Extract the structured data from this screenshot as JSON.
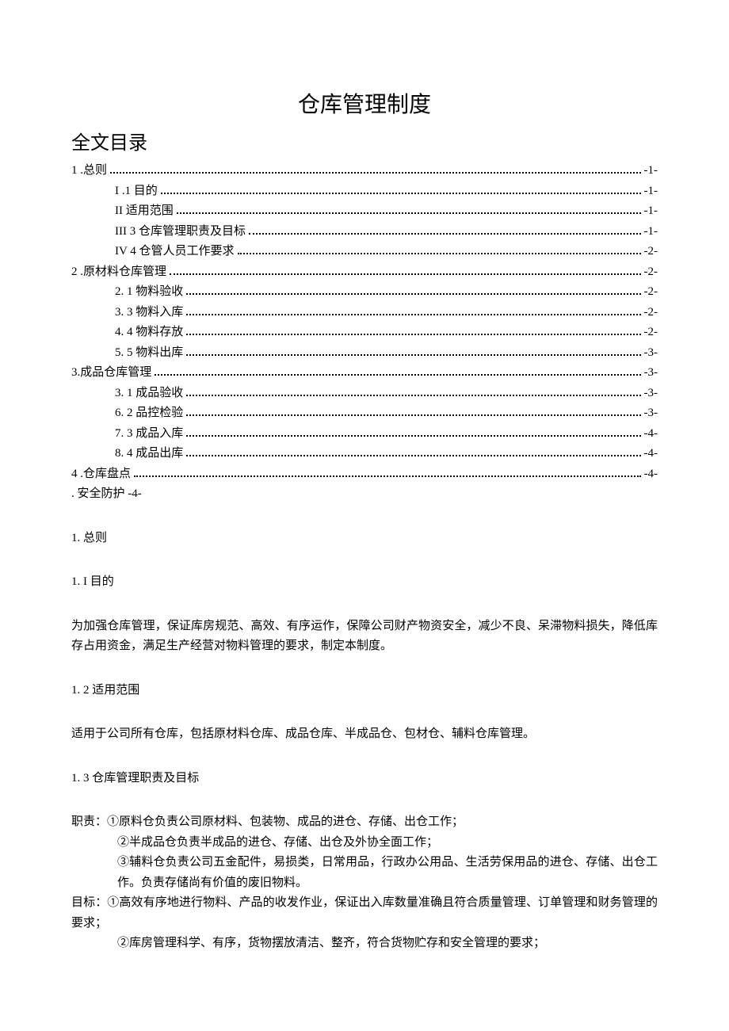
{
  "colors": {
    "text": "#000000",
    "bg": "#ffffff"
  },
  "title": "仓库管理制度",
  "toc_header": "全文目录",
  "toc": [
    {
      "level": 1,
      "label": "1  .总则",
      "page": "-1-"
    },
    {
      "level": 2,
      "label": "I   .1 目的",
      "page": "-1-"
    },
    {
      "level": 2,
      "label": "II     适用范围",
      "page": "-1-"
    },
    {
      "level": 2,
      "label": "III  3 仓库管理职责及目标",
      "page": "-1-"
    },
    {
      "level": 2,
      "label": "IV  4 仓管人员工作要求",
      "page": "-2-"
    },
    {
      "level": 1,
      "label": "2   .原材料仓库管理",
      "page": "-2-"
    },
    {
      "level": 2,
      "label": "2.  1 物料验收",
      "page": "-2-"
    },
    {
      "level": 2,
      "label": "3.  3 物料入库",
      "page": "-2-"
    },
    {
      "level": 2,
      "label": "4.  4 物料存放",
      "page": "-2-"
    },
    {
      "level": 2,
      "label": "5.  5 物料出库",
      "page": "-3-"
    },
    {
      "level": 1,
      "label": "3.成品仓库管理",
      "page": "-3-"
    },
    {
      "level": 2,
      "label": "3.  1 成品验收",
      "page": "-3-"
    },
    {
      "level": 2,
      "label": "6.  2 品控检验",
      "page": "-3-"
    },
    {
      "level": 2,
      "label": "7.  3 成品入库",
      "page": "-4-"
    },
    {
      "level": 2,
      "label": "8.  4 成品出库",
      "page": "-4-"
    },
    {
      "level": 1,
      "label": "4   .仓库盘点",
      "page": "-4-"
    }
  ],
  "toc_plain": ". 安全防护     -4-",
  "sections": [
    {
      "heading": "1. 总则"
    },
    {
      "heading": "1. I 目的"
    },
    {
      "para": "为加强仓库管理，保证库房规范、高效、有序运作，保障公司财产物资安全，减少不良、呆滞物料损失，降低库存占用资金，满足生产经营对物料管理的要求，制定本制度。"
    },
    {
      "heading": "1. 2 适用范围"
    },
    {
      "para": "适用于公司所有仓库，包括原材料仓库、成品仓库、半成品仓、包材仓、辅料仓库管理。"
    },
    {
      "heading": "1. 3 仓库管理职责及目标"
    },
    {
      "lines": [
        {
          "text": "职责：①原料仓负责公司原材料、包装物、成品的进仓、存储、出仓工作；",
          "indent": false
        },
        {
          "text": "②半成品仓负责半成品的进仓、存储、出仓及外协全面工作；",
          "indent": true
        },
        {
          "text": "③辅料仓负责公司五金配件，易损类，日常用品，行政办公用品、生活劳保用品的进仓、存储、出仓工作。负责存储尚有价值的废旧物料。",
          "indent": true
        },
        {
          "text": "目标：①高效有序地进行物料、产品的收发作业，保证出入库数量准确且符合质量管理、订单管理和财务管理的要求；",
          "indent": false
        },
        {
          "text": "②库房管理科学、有序，货物摆放清洁、整齐，符合货物贮存和安全管理的要求；",
          "indent": true
        }
      ]
    }
  ]
}
